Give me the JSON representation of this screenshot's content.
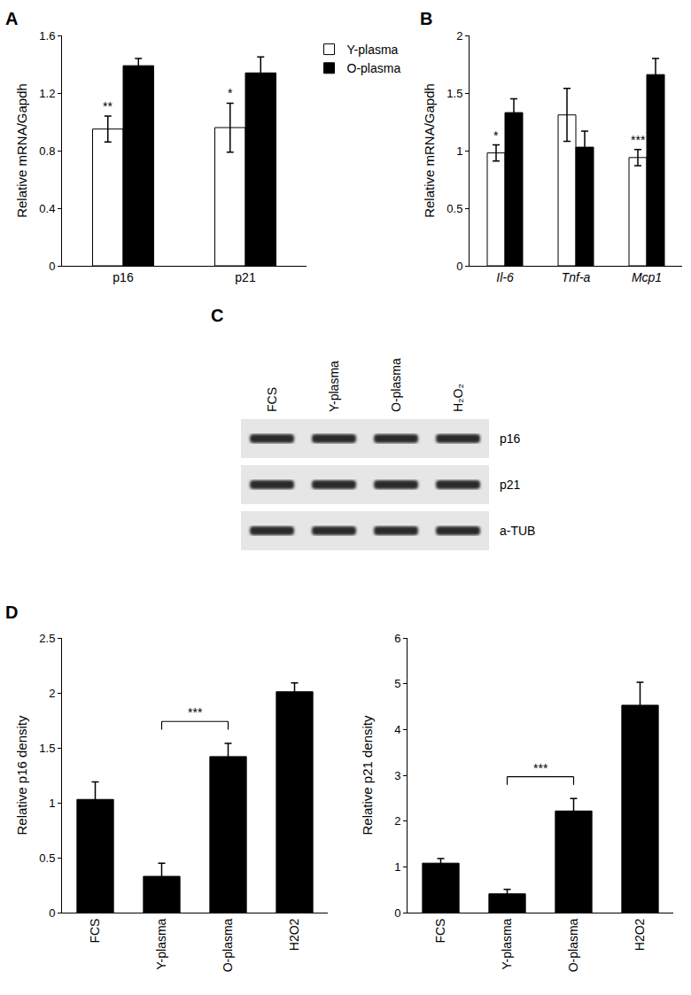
{
  "chart_data": [
    {
      "panel_label": "A",
      "type": "bar",
      "y_label": "Relative mRNA/Gapdh",
      "categories": [
        "p16",
        "p21"
      ],
      "series": [
        {
          "name": "Y-plasma",
          "color": "#ffffff",
          "values": [
            0.95,
            0.96
          ],
          "errors": [
            0.09,
            0.17
          ]
        },
        {
          "name": "O-plasma",
          "color": "#000000",
          "values": [
            1.39,
            1.34
          ],
          "errors": [
            0.05,
            0.11
          ]
        }
      ],
      "ylim": [
        0,
        1.6
      ],
      "yticks": [
        0,
        0.4,
        0.8,
        1.2,
        1.6
      ],
      "grid": false,
      "legend": "top right",
      "annotations": [
        {
          "category": "p16",
          "series": "Y-plasma",
          "text": "**"
        },
        {
          "category": "p21",
          "series": "Y-plasma",
          "text": "*"
        }
      ]
    },
    {
      "panel_label": "B",
      "type": "bar",
      "y_label": "Relative mRNA/Gapdh",
      "categories": [
        "Il-6",
        "Tnf-a",
        "Mcp1"
      ],
      "series": [
        {
          "name": "Y-plasma",
          "color": "#ffffff",
          "values": [
            0.98,
            1.31,
            0.94
          ],
          "errors": [
            0.07,
            0.23,
            0.07
          ]
        },
        {
          "name": "O-plasma",
          "color": "#000000",
          "values": [
            1.33,
            1.03,
            1.66
          ],
          "errors": [
            0.12,
            0.14,
            0.14
          ]
        }
      ],
      "ylim": [
        0,
        2
      ],
      "yticks": [
        0,
        0.5,
        1,
        1.5,
        2
      ],
      "grid": false,
      "annotations": [
        {
          "category": "Il-6",
          "series": "Y-plasma",
          "text": "*"
        },
        {
          "category": "Mcp1",
          "series": "Y-plasma",
          "text": "***"
        }
      ]
    },
    {
      "panel_label": "D",
      "type": "bar",
      "y_label": "Relative p16 density",
      "categories": [
        "FCS",
        "Y-plasma",
        "O-plasma",
        "H2O2"
      ],
      "values": [
        1.03,
        0.33,
        1.42,
        2.01
      ],
      "errors": [
        0.16,
        0.12,
        0.12,
        0.08
      ],
      "color": "#000000",
      "ylim": [
        0,
        2.5
      ],
      "yticks": [
        0,
        0.5,
        1,
        1.5,
        2,
        2.5
      ],
      "grid": false,
      "brackets": [
        {
          "from": "Y-plasma",
          "to": "O-plasma",
          "text": "***"
        }
      ]
    },
    {
      "type": "bar",
      "y_label": "Relative p21 density",
      "categories": [
        "FCS",
        "Y-plasma",
        "O-plasma",
        "H2O2"
      ],
      "values": [
        1.08,
        0.41,
        2.22,
        4.53
      ],
      "errors": [
        0.1,
        0.1,
        0.27,
        0.5
      ],
      "color": "#000000",
      "ylim": [
        0,
        6
      ],
      "yticks": [
        0,
        1,
        2,
        3,
        4,
        5,
        6
      ],
      "grid": false,
      "brackets": [
        {
          "from": "Y-plasma",
          "to": "O-plasma",
          "text": "***"
        }
      ]
    }
  ],
  "blot": {
    "panel_label": "C",
    "lanes": [
      "FCS",
      "Y-plasma",
      "O-plasma",
      "H₂O₂"
    ],
    "rows": [
      "p16",
      "p21",
      "a-TUB"
    ]
  }
}
